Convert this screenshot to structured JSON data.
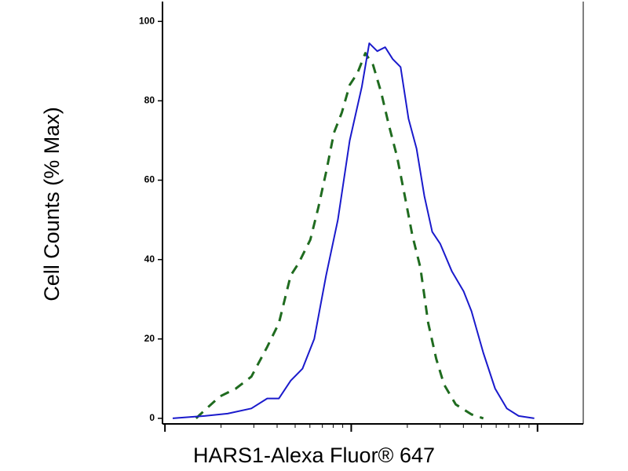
{
  "chart_data": {
    "type": "line",
    "x_label": "HARS1-Alexa Fluor® 647",
    "y_label": "Cell Counts (% Max)",
    "x_log": true,
    "xlim": [
      0.97,
      176
    ],
    "xticks": [
      1,
      2,
      3,
      4,
      5,
      6,
      7,
      8,
      9,
      10,
      20,
      30,
      40,
      50,
      60,
      70,
      80,
      90,
      100
    ],
    "ylim": [
      -1.4,
      105
    ],
    "yticks": [
      0,
      20,
      40,
      60,
      80,
      100
    ],
    "series": [
      {
        "color": "#1f6b1f",
        "dashed": true,
        "x": [
          1.47,
          1.63,
          1.97,
          2.4,
          2.91,
          3.54,
          4.09,
          4.73,
          5.21,
          6.03,
          6.65,
          7.33,
          8.08,
          8.9,
          9.81,
          10.8,
          11.9,
          13.1,
          14.5,
          15.9,
          17.6,
          19.4,
          21.3,
          23.5,
          25.9,
          28.6,
          31.5,
          36.4,
          44.2,
          51.2
        ],
        "values": [
          0,
          2,
          5.5,
          7.5,
          10.5,
          18,
          24,
          36,
          39,
          45,
          53,
          62,
          72,
          77,
          84,
          87,
          92,
          89,
          82,
          74,
          66,
          56,
          46,
          38,
          24,
          15,
          8.5,
          3.5,
          1,
          0
        ]
      },
      {
        "color": "#1a1acc",
        "dashed": false,
        "x": [
          1.1,
          1.63,
          2.17,
          2.91,
          3.54,
          4.09,
          4.73,
          5.47,
          6.33,
          7.33,
          8.48,
          9.81,
          11.4,
          12.5,
          13.8,
          15.2,
          16.7,
          18.4,
          20.3,
          22.4,
          24.7,
          27.2,
          30.0,
          34.7,
          40.1,
          44.2,
          51.2,
          59.2,
          68.4,
          79.2,
          96.1
        ],
        "values": [
          0,
          0.6,
          1.2,
          2.5,
          5,
          5,
          9.5,
          12.5,
          20,
          36,
          50,
          70,
          83.5,
          94.5,
          92.5,
          93.5,
          90.5,
          88.5,
          75.5,
          68,
          56,
          47,
          44,
          37,
          32,
          27,
          16.5,
          7.5,
          2.5,
          0.6,
          0
        ]
      }
    ]
  }
}
